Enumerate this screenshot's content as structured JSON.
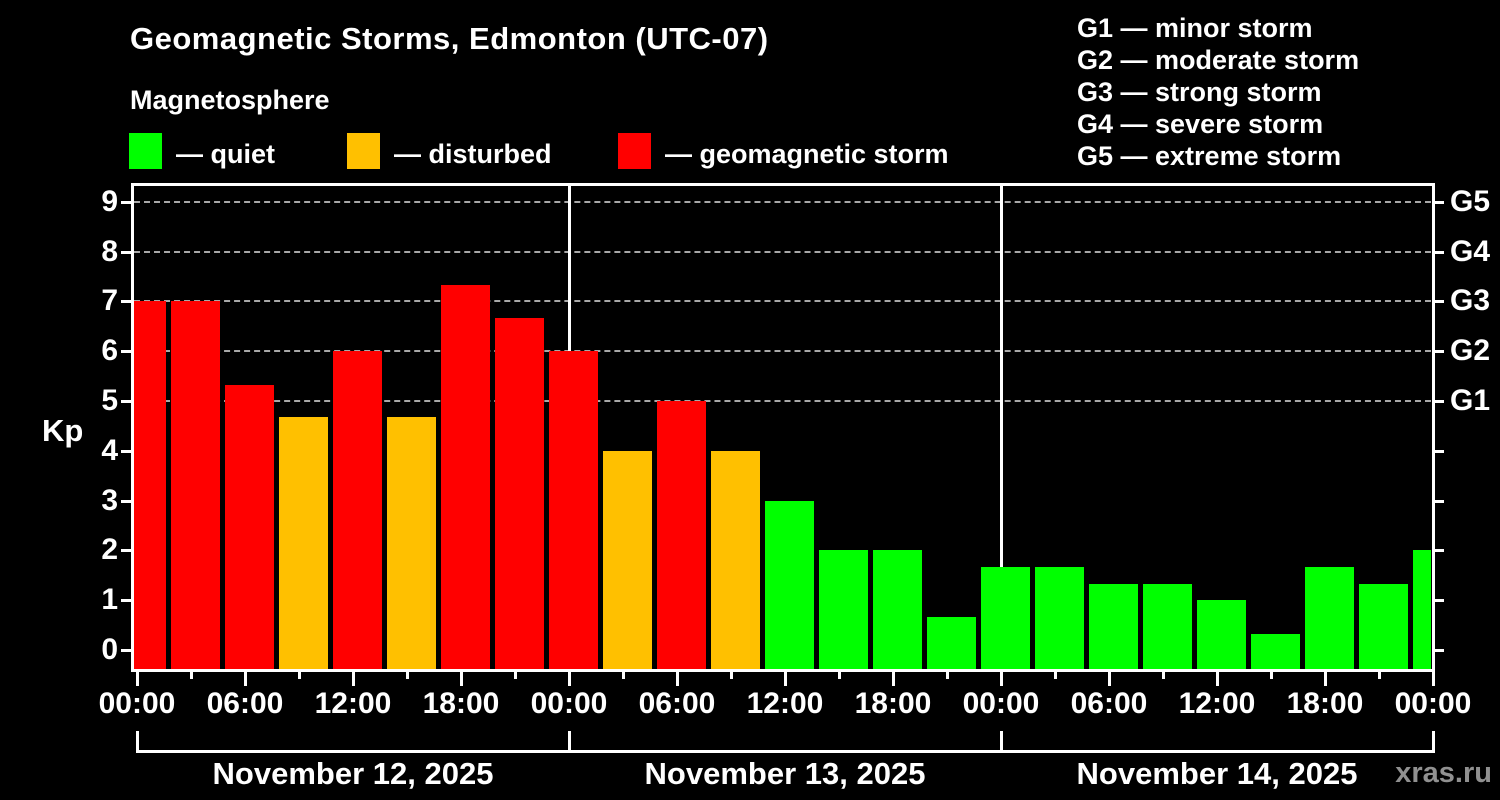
{
  "header": {
    "title": "Geomagnetic Storms, Edmonton (UTC-07)",
    "subtitle": "Magnetosphere",
    "legend": [
      {
        "key": "quiet",
        "label": "— quiet",
        "color": "#00ff00"
      },
      {
        "key": "disturbed",
        "label": "— disturbed",
        "color": "#ffc000"
      },
      {
        "key": "storm",
        "label": "— geomagnetic storm",
        "color": "#ff0000"
      }
    ],
    "g_scale_legend": [
      {
        "code": "G1",
        "label": "minor storm"
      },
      {
        "code": "G2",
        "label": "moderate storm"
      },
      {
        "code": "G3",
        "label": "strong storm"
      },
      {
        "code": "G4",
        "label": "severe storm"
      },
      {
        "code": "G5",
        "label": "extreme storm"
      }
    ]
  },
  "chart_data": {
    "type": "bar",
    "title": "Geomagnetic Storms, Edmonton (UTC-07)",
    "ylabel": "Kp",
    "ylim": [
      0,
      9.5
    ],
    "y_ticks": [
      0,
      1,
      2,
      3,
      4,
      5,
      6,
      7,
      8,
      9
    ],
    "gridlines_at_kp": [
      5,
      6,
      7,
      8,
      9
    ],
    "grid": "dashed-horizontal",
    "right_axis_labels": [
      {
        "kp": 5,
        "label": "G1"
      },
      {
        "kp": 6,
        "label": "G2"
      },
      {
        "kp": 7,
        "label": "G3"
      },
      {
        "kp": 8,
        "label": "G4"
      },
      {
        "kp": 9,
        "label": "G5"
      }
    ],
    "x_tick_interval_hours": 3,
    "x_major_labels": [
      "00:00",
      "06:00",
      "12:00",
      "18:00",
      "00:00",
      "06:00",
      "12:00",
      "18:00",
      "00:00",
      "06:00",
      "12:00",
      "18:00",
      "00:00"
    ],
    "days": [
      {
        "date": "November 12, 2025",
        "values": [
          7,
          7,
          5.33,
          4.67,
          6,
          4.67,
          7.33,
          6.67
        ]
      },
      {
        "date": "November 13, 2025",
        "values": [
          6,
          4,
          5,
          4,
          3,
          2,
          2,
          0.67
        ]
      },
      {
        "date": "November 14, 2025",
        "values": [
          1.67,
          1.67,
          1.33,
          1.33,
          1,
          0.33,
          1.67,
          1.33
        ]
      }
    ],
    "trailing_partial_value": 2,
    "series_colors": {
      "quiet": "#00ff00",
      "disturbed": "#ffc000",
      "storm": "#ff0000"
    },
    "color_rules": {
      "storm_min_kp": 5,
      "disturbed_min_kp": 4
    }
  },
  "watermark": "xras.ru"
}
